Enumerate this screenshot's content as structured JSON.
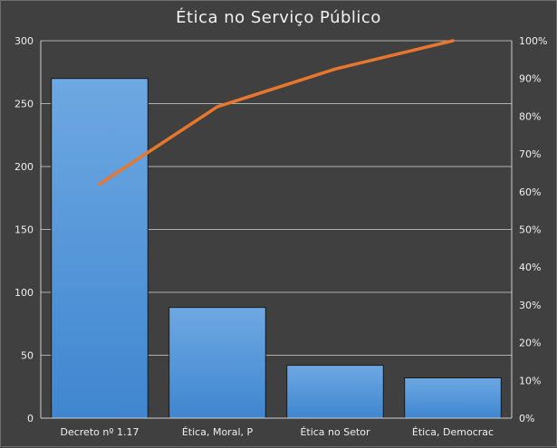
{
  "chart_data": {
    "type": "bar",
    "title": "Ética no Serviço Público",
    "categories": [
      "Decreto nº 1.17",
      "Ética, Moral, P",
      "Ética no Setor",
      "Ética, Democrac"
    ],
    "series": [
      {
        "type": "bar",
        "axis": "left",
        "values": [
          270,
          88,
          42,
          32
        ]
      },
      {
        "type": "line",
        "axis": "right",
        "values": [
          0.62,
          0.825,
          0.925,
          1.0
        ]
      }
    ],
    "y_left": {
      "ylim": [
        0,
        300
      ],
      "ticks": [
        0,
        50,
        100,
        150,
        200,
        250,
        300
      ]
    },
    "y_right": {
      "ylim": [
        0,
        1
      ],
      "ticks": [
        "0%",
        "10%",
        "20%",
        "30%",
        "40%",
        "50%",
        "60%",
        "70%",
        "80%",
        "90%",
        "100%"
      ]
    },
    "grid": true,
    "colors": {
      "bar": "#4a8ed4",
      "bar_top": "#6aa6e0",
      "line": "#e8772e",
      "grid": "#b0b0b0",
      "axis": "#d0d0d0",
      "background": "#404040"
    }
  }
}
